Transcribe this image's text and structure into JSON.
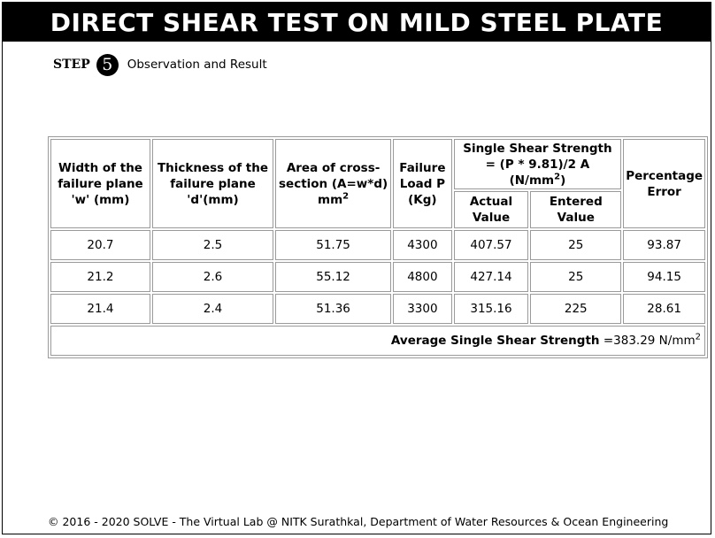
{
  "header": {
    "title": "DIRECT SHEAR TEST ON MILD STEEL PLATE"
  },
  "step": {
    "label": "STEP",
    "number": "5",
    "text": "Observation and Result"
  },
  "table": {
    "headers": {
      "width": "Width of the failure plane 'w' (mm)",
      "thickness": "Thickness of the failure plane 'd'(mm)",
      "area": "Area of cross-section (A=w*d) mm",
      "area_sup": "2",
      "load": "Failure Load P (Kg)",
      "strength": "Single Shear Strength = (P * 9.81)/2 A (N/mm",
      "strength_sup": "2",
      "strength_close": ")",
      "actual": "Actual Value",
      "entered": "Entered Value",
      "error": "Percentage Error"
    },
    "rows": [
      {
        "w": "20.7",
        "d": "2.5",
        "area": "51.75",
        "load": "4300",
        "actual": "407.57",
        "entered": "25",
        "error": "93.87"
      },
      {
        "w": "21.2",
        "d": "2.6",
        "area": "55.12",
        "load": "4800",
        "actual": "427.14",
        "entered": "25",
        "error": "94.15"
      },
      {
        "w": "21.4",
        "d": "2.4",
        "area": "51.36",
        "load": "3300",
        "actual": "315.16",
        "entered": "225",
        "error": "28.61"
      }
    ],
    "average": {
      "label": "Average Single Shear Strength",
      "value": "=383.29 N/mm",
      "sup": "2"
    }
  },
  "footer": {
    "text": "© 2016 - 2020 SOLVE - The Virtual Lab @ NITK Surathkal, Department of Water Resources & Ocean Engineering"
  }
}
